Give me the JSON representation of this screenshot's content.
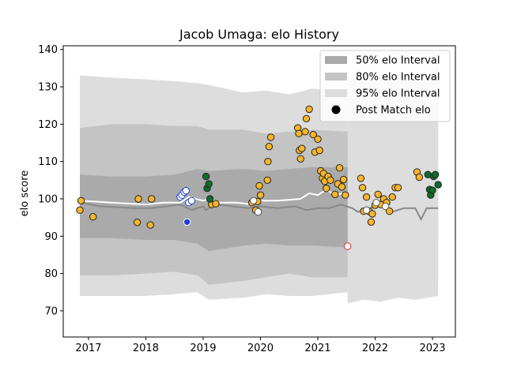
{
  "chart_data": {
    "type": "scatter",
    "title": "Jacob Umaga: elo History",
    "xlabel": "",
    "ylabel": "elo score",
    "xlim": [
      2016.56,
      2023.4
    ],
    "ylim": [
      63,
      141
    ],
    "xticks": [
      2017,
      2018,
      2019,
      2020,
      2021,
      2022,
      2023
    ],
    "yticks": [
      70,
      80,
      90,
      100,
      110,
      120,
      130,
      140
    ],
    "legend_position": "top-right",
    "legend": [
      {
        "label": "50% elo Interval",
        "kind": "band",
        "color": "#aaaaaa"
      },
      {
        "label": "80% elo Interval",
        "kind": "band",
        "color": "#c4c4c4"
      },
      {
        "label": "95% elo Interval",
        "kind": "band",
        "color": "#dddddd"
      },
      {
        "label": "Post Match elo",
        "kind": "marker",
        "color": "#000000"
      }
    ],
    "interval_end_x": 2021.52,
    "intervals": [
      {
        "name": "95% elo Interval",
        "color": "#dddddd",
        "x": [
          2016.85,
          2017.4,
          2018.0,
          2018.5,
          2018.9,
          2019.1,
          2019.7,
          2020.1,
          2020.5,
          2020.9,
          2021.52
        ],
        "upper": [
          133.0,
          132.5,
          132.0,
          131.5,
          131.0,
          130.5,
          128.5,
          129.0,
          128.0,
          129.5,
          129.0
        ],
        "lower": [
          74.0,
          74.0,
          74.0,
          74.5,
          75.0,
          73.0,
          73.5,
          74.5,
          74.0,
          74.0,
          75.0
        ]
      },
      {
        "name": "80% elo Interval",
        "color": "#c4c4c4",
        "x": [
          2016.85,
          2017.4,
          2018.0,
          2018.5,
          2018.9,
          2019.1,
          2019.7,
          2020.1,
          2020.5,
          2020.9,
          2021.52
        ],
        "upper": [
          119.0,
          120.0,
          120.0,
          119.5,
          119.5,
          118.5,
          118.5,
          117.5,
          118.0,
          118.5,
          118.0
        ],
        "lower": [
          79.5,
          79.5,
          80.0,
          80.5,
          79.5,
          77.0,
          78.0,
          79.0,
          80.0,
          79.0,
          79.0
        ]
      },
      {
        "name": "50% elo Interval",
        "color": "#aaaaaa",
        "x": [
          2016.85,
          2017.4,
          2018.0,
          2018.5,
          2018.9,
          2019.1,
          2019.7,
          2020.1,
          2020.5,
          2020.9,
          2021.52
        ],
        "upper": [
          106.5,
          106.0,
          106.0,
          106.5,
          108.0,
          107.5,
          108.0,
          107.5,
          108.0,
          108.5,
          108.5
        ],
        "lower": [
          89.5,
          89.5,
          89.0,
          89.0,
          88.0,
          86.0,
          87.5,
          88.0,
          87.5,
          87.5,
          87.0
        ]
      }
    ],
    "intervals_after": [
      {
        "color": "#dddddd",
        "x": [
          2021.52,
          2021.8,
          2022.1,
          2022.4,
          2022.7,
          2023.1
        ],
        "upper": [
          118.5,
          117.5,
          120.0,
          117.0,
          118.5,
          118.0
        ],
        "lower": [
          77.0,
          78.0,
          77.0,
          79.0,
          77.0,
          78.0
        ]
      },
      {
        "color": "#dddddd",
        "x": [
          2021.52,
          2021.8,
          2022.1,
          2022.4,
          2022.7,
          2023.1
        ],
        "upper": [
          109.0,
          108.5,
          110.0,
          107.5,
          109.0,
          108.5
        ],
        "lower": [
          89.0,
          89.5,
          89.0,
          90.0,
          89.0,
          90.0
        ]
      },
      {
        "color": "#dddddd",
        "x": [
          2021.52,
          2021.8,
          2022.1,
          2022.4,
          2022.7,
          2023.1
        ],
        "upper": [
          133.0,
          131.5,
          132.5,
          133.0,
          131.0,
          136.0
        ],
        "lower": [
          72.0,
          73.0,
          72.5,
          73.5,
          73.0,
          74.0
        ]
      }
    ],
    "series": [
      {
        "kind": "line",
        "color": "#888888",
        "x": [
          2016.85,
          2017.2,
          2017.8,
          2018.1,
          2018.6,
          2018.8,
          2019.0,
          2019.05,
          2019.2,
          2019.5,
          2019.8,
          2020.0,
          2020.3,
          2020.6,
          2020.8,
          2021.0,
          2021.2,
          2021.4,
          2021.6,
          2021.7,
          2021.9,
          2022.1,
          2022.3,
          2022.5,
          2022.7,
          2022.8,
          2022.9,
          2023.1
        ],
        "y": [
          99.0,
          98.0,
          97.5,
          97.5,
          98.5,
          97.0,
          98.0,
          97.0,
          98.5,
          98.0,
          97.5,
          98.0,
          97.5,
          98.0,
          97.0,
          97.5,
          97.5,
          98.5,
          97.5,
          96.5,
          97.5,
          98.5,
          96.5,
          97.5,
          97.5,
          94.5,
          97.5,
          97.5
        ]
      },
      {
        "kind": "line",
        "color": "#ffffff",
        "x": [
          2016.85,
          2017.4,
          2018.0,
          2018.3,
          2018.6,
          2018.75,
          2019.0,
          2019.1,
          2019.3,
          2019.6,
          2019.85,
          2020.0,
          2020.3,
          2020.7,
          2020.85,
          2021.0,
          2021.15,
          2021.3,
          2021.45,
          2021.52
        ],
        "y": [
          99.5,
          99.0,
          98.5,
          99.0,
          99.0,
          100.5,
          99.5,
          100.0,
          99.0,
          99.0,
          98.5,
          99.5,
          99.5,
          100.0,
          101.5,
          101.0,
          102.5,
          101.0,
          101.5,
          101.5
        ]
      },
      {
        "kind": "points",
        "name": "orange",
        "color": "#f9b52a",
        "stroke": "#222222",
        "points": [
          [
            2016.85,
            97.0
          ],
          [
            2016.87,
            99.5
          ],
          [
            2017.08,
            95.2
          ],
          [
            2017.85,
            93.7
          ],
          [
            2017.87,
            100.0
          ],
          [
            2018.08,
            93.0
          ],
          [
            2018.1,
            100.0
          ],
          [
            2019.15,
            98.5
          ],
          [
            2019.22,
            98.7
          ],
          [
            2019.85,
            99.0
          ],
          [
            2019.92,
            97.0
          ],
          [
            2019.95,
            99.3
          ],
          [
            2019.98,
            103.5
          ],
          [
            2020.0,
            101.0
          ],
          [
            2020.12,
            105.0
          ],
          [
            2020.13,
            110.0
          ],
          [
            2020.15,
            114.0
          ],
          [
            2020.18,
            116.5
          ],
          [
            2020.65,
            119.0
          ],
          [
            2020.67,
            117.5
          ],
          [
            2020.68,
            113.0
          ],
          [
            2020.7,
            110.7
          ],
          [
            2020.72,
            113.5
          ],
          [
            2020.78,
            118.0
          ],
          [
            2020.8,
            121.5
          ],
          [
            2020.85,
            124.0
          ],
          [
            2020.92,
            117.2
          ],
          [
            2020.95,
            112.5
          ],
          [
            2021.0,
            116.0
          ],
          [
            2021.03,
            113.0
          ],
          [
            2021.05,
            107.5
          ],
          [
            2021.08,
            105.5
          ],
          [
            2021.1,
            106.8
          ],
          [
            2021.12,
            104.7
          ],
          [
            2021.15,
            102.8
          ],
          [
            2021.18,
            106.0
          ],
          [
            2021.22,
            105.0
          ],
          [
            2021.3,
            101.2
          ],
          [
            2021.35,
            104.0
          ],
          [
            2021.38,
            108.3
          ],
          [
            2021.42,
            103.2
          ],
          [
            2021.45,
            105.2
          ],
          [
            2021.48,
            101.0
          ],
          [
            2021.75,
            105.5
          ],
          [
            2021.78,
            103.0
          ],
          [
            2021.8,
            96.7
          ],
          [
            2021.85,
            100.5
          ],
          [
            2021.9,
            96.6
          ],
          [
            2021.93,
            93.8
          ],
          [
            2021.95,
            96.0
          ],
          [
            2022.0,
            98.3
          ],
          [
            2022.05,
            101.2
          ],
          [
            2022.1,
            98.5
          ],
          [
            2022.15,
            100.0
          ],
          [
            2022.2,
            99.0
          ],
          [
            2022.25,
            96.7
          ],
          [
            2022.3,
            100.5
          ],
          [
            2022.35,
            103.0
          ],
          [
            2022.4,
            103.0
          ],
          [
            2022.73,
            107.2
          ],
          [
            2022.77,
            105.8
          ]
        ]
      },
      {
        "kind": "points",
        "name": "white",
        "color": "#ffffff",
        "stroke": "#555555",
        "points": [
          [
            2019.88,
            99.5
          ],
          [
            2019.96,
            96.5
          ],
          [
            2021.85,
            97.0
          ],
          [
            2022.02,
            99.0
          ],
          [
            2022.18,
            98.0
          ]
        ]
      },
      {
        "kind": "points",
        "name": "blue",
        "color": "#ffffff",
        "stroke": "#1f3fd0",
        "points": [
          [
            2018.6,
            100.5
          ],
          [
            2018.63,
            101.0
          ],
          [
            2018.67,
            101.8
          ],
          [
            2018.7,
            102.2
          ],
          [
            2018.75,
            99.0
          ],
          [
            2018.8,
            99.5
          ]
        ]
      },
      {
        "kind": "points",
        "name": "blue-filled",
        "color": "#1f3fd0",
        "stroke": "#ffffff",
        "points": [
          [
            2018.72,
            93.8
          ]
        ]
      },
      {
        "kind": "points",
        "name": "green",
        "color": "#0e6b2c",
        "stroke": "#222222",
        "points": [
          [
            2019.05,
            106.0
          ],
          [
            2019.07,
            102.8
          ],
          [
            2019.1,
            104.0
          ],
          [
            2019.12,
            100.0
          ],
          [
            2022.92,
            106.5
          ],
          [
            2022.95,
            102.5
          ],
          [
            2022.97,
            101.0
          ],
          [
            2023.0,
            102.3
          ],
          [
            2023.02,
            106.0
          ],
          [
            2023.05,
            106.5
          ],
          [
            2023.1,
            103.8
          ]
        ]
      },
      {
        "kind": "points",
        "name": "red-open",
        "color": "#ffffff",
        "stroke": "#e03030",
        "points": [
          [
            2021.52,
            87.3
          ]
        ]
      }
    ]
  }
}
